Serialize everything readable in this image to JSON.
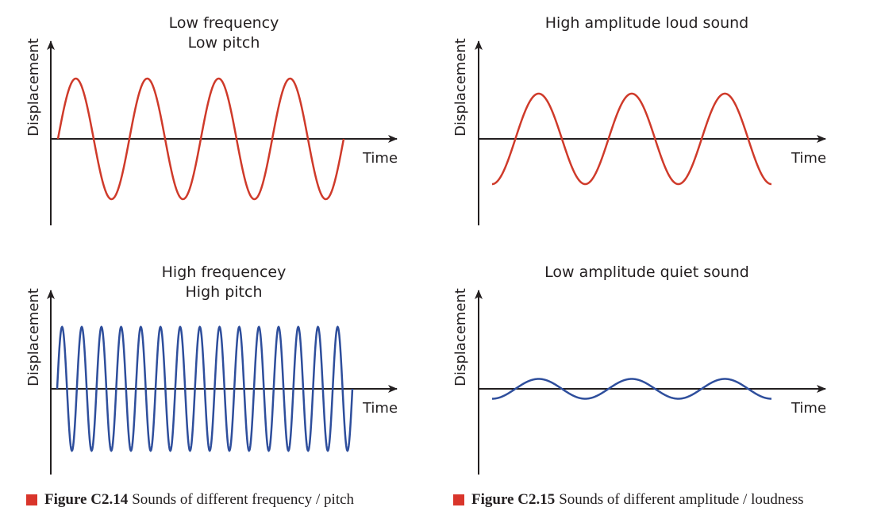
{
  "colors": {
    "red_wave": "#cf3a2a",
    "blue_wave": "#2e4e9c",
    "axis": "#231f20",
    "caption_marker": "#d9352b"
  },
  "panels": [
    {
      "title_lines": [
        "Low frequency",
        "Low pitch"
      ],
      "ylabel": "Displacement",
      "xlabel": "Time",
      "wave": {
        "color_key": "red_wave",
        "cycles": 4,
        "amplitude": 1.0,
        "phase": "starts at zero rising"
      }
    },
    {
      "title_lines": [
        "High amplitude loud sound"
      ],
      "ylabel": "Displacement",
      "xlabel": "Time",
      "wave": {
        "color_key": "red_wave",
        "cycles": 3,
        "amplitude": 0.75,
        "phase": "starts at trough"
      }
    },
    {
      "title_lines": [
        "High frequencey",
        "High pitch"
      ],
      "ylabel": "Displacement",
      "xlabel": "Time",
      "wave": {
        "color_key": "blue_wave",
        "cycles": 15,
        "amplitude": 1.0,
        "phase": "starts at zero rising"
      }
    },
    {
      "title_lines": [
        "Low amplitude quiet sound"
      ],
      "ylabel": "Displacement",
      "xlabel": "Time",
      "wave": {
        "color_key": "blue_wave",
        "cycles": 3,
        "amplitude": 0.16,
        "phase": "starts at trough"
      }
    }
  ],
  "captions": [
    {
      "figure": "Figure C2.14",
      "text": "Sounds of different frequency / pitch"
    },
    {
      "figure": "Figure C2.15",
      "text": "Sounds of different amplitude / loudness"
    }
  ]
}
